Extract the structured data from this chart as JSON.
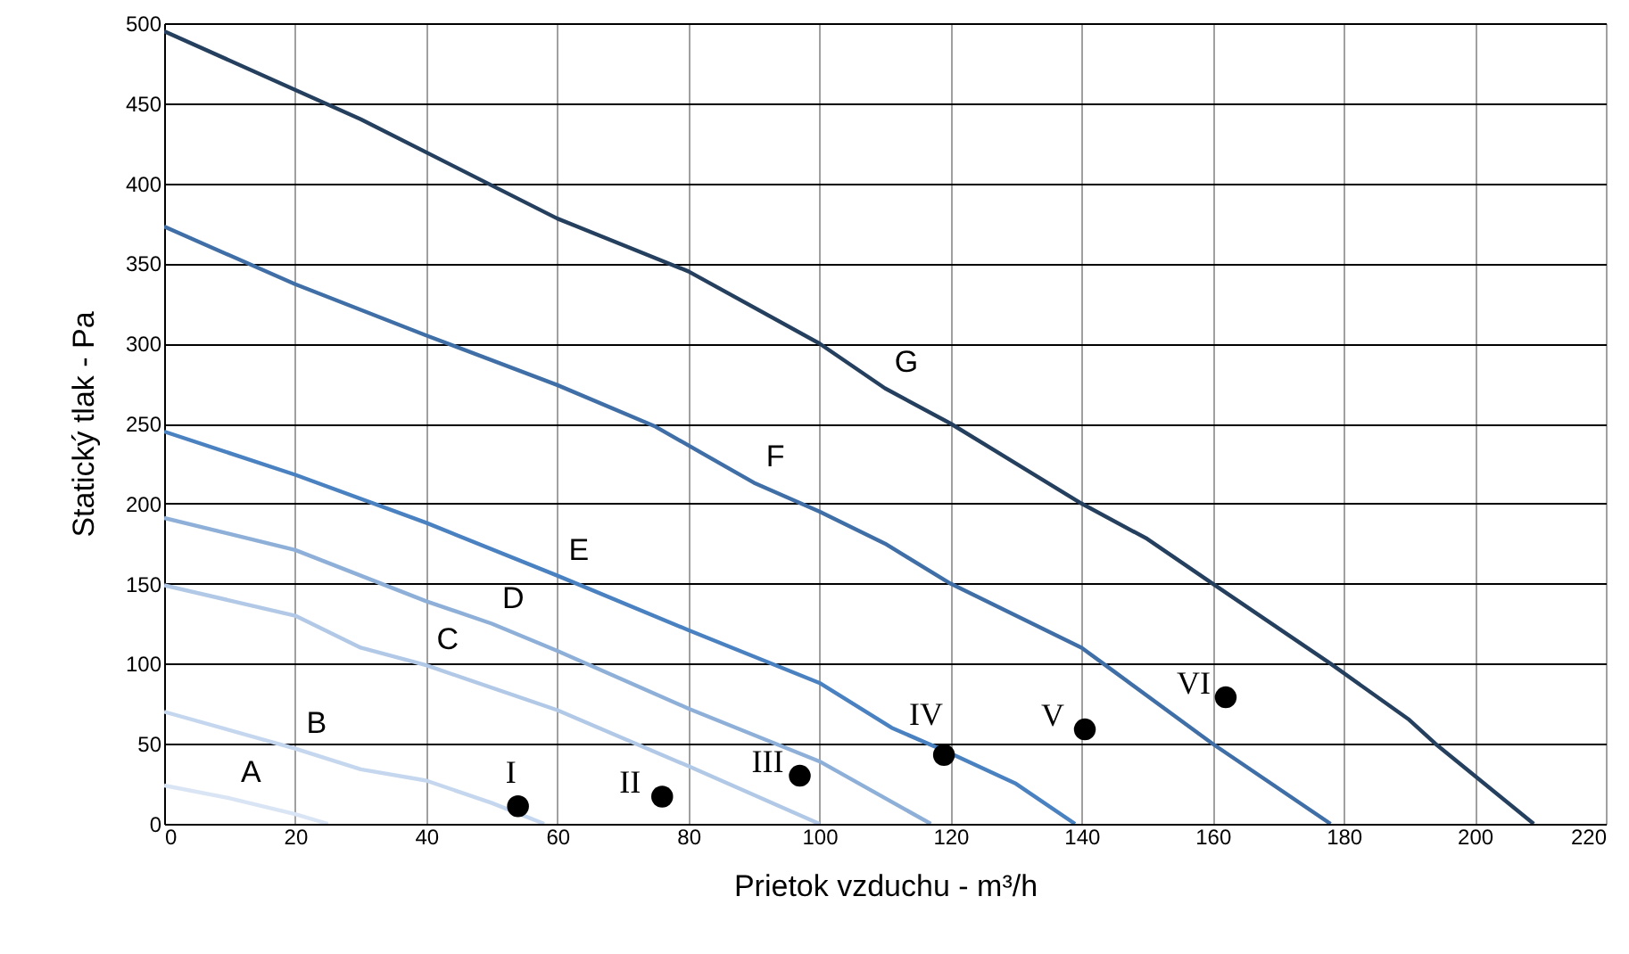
{
  "chart_data": {
    "type": "line",
    "xlabel": "Prietok vzduchu - m³/h",
    "ylabel": "Statický tlak - Pa",
    "xlim": [
      0,
      220
    ],
    "xticks": [
      0,
      20,
      40,
      60,
      80,
      100,
      120,
      140,
      160,
      180,
      200,
      220
    ],
    "ylim": [
      0,
      500
    ],
    "yticks": [
      0,
      50,
      100,
      150,
      200,
      250,
      300,
      350,
      400,
      450,
      500
    ],
    "grid": true,
    "line_style": "solid",
    "series": [
      {
        "type": "line",
        "color": "#d9e5f4",
        "x": [
          0,
          10,
          20,
          25
        ],
        "values": [
          24,
          16,
          6,
          0
        ]
      },
      {
        "type": "line",
        "color": "#c5d7ee",
        "x": [
          0,
          20,
          30,
          40,
          50,
          58
        ],
        "values": [
          70,
          47,
          34,
          27,
          13,
          0
        ]
      },
      {
        "type": "line",
        "color": "#b1c9e6",
        "x": [
          0,
          20,
          30,
          40,
          60,
          80,
          100
        ],
        "values": [
          149,
          130,
          110,
          99,
          71,
          36,
          0
        ]
      },
      {
        "type": "line",
        "color": "#8eb0d8",
        "x": [
          0,
          20,
          40,
          50,
          60,
          80,
          100,
          117
        ],
        "values": [
          191,
          171,
          139,
          125,
          108,
          72,
          39,
          0
        ]
      },
      {
        "type": "line",
        "color": "#4a81c0",
        "x": [
          0,
          20,
          40,
          60,
          80,
          100,
          111,
          120,
          130,
          139
        ],
        "values": [
          245,
          218,
          188,
          155,
          121,
          88,
          60,
          44,
          25,
          0
        ]
      },
      {
        "type": "line",
        "color": "#3f6fa6",
        "x": [
          0,
          20,
          40,
          60,
          75,
          90,
          100,
          110,
          120,
          140,
          145,
          160,
          178
        ],
        "values": [
          373,
          337,
          305,
          274,
          248,
          213,
          195,
          175,
          150,
          110,
          95,
          50,
          0
        ]
      },
      {
        "type": "line",
        "color": "#253f5e",
        "x": [
          0,
          30,
          60,
          80,
          100,
          110,
          120,
          140,
          150,
          160,
          178,
          190,
          194,
          209
        ],
        "values": [
          495,
          440,
          378,
          345,
          300,
          272,
          250,
          200,
          178,
          150,
          100,
          65,
          50,
          0
        ]
      },
      {
        "type": "scatter",
        "color": "#000000",
        "marker": "circle",
        "x": [
          54,
          76,
          97,
          119,
          140.5,
          162
        ],
        "values": [
          11,
          17,
          30,
          43,
          59,
          79
        ],
        "value_labels": [
          "I",
          "II",
          "III",
          "IV",
          "V",
          "VI"
        ]
      }
    ],
    "annotations": [
      {
        "text": "A",
        "x": 10,
        "y": 16
      },
      {
        "text": "B",
        "x": 20,
        "y": 47
      },
      {
        "text": "C",
        "x": 40,
        "y": 99
      },
      {
        "text": "D",
        "x": 50,
        "y": 125
      },
      {
        "text": "E",
        "x": 60,
        "y": 155
      },
      {
        "text": "F",
        "x": 90,
        "y": 213
      },
      {
        "text": "G",
        "x": 110,
        "y": 272
      }
    ]
  }
}
